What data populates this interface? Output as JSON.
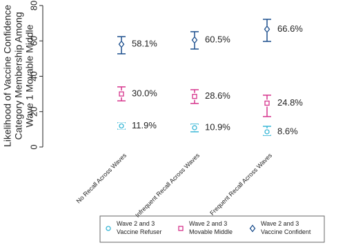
{
  "chart_data": {
    "type": "errorbar",
    "ylabel": [
      "Likelihood of Vaccine Confidence",
      "Category Membership Among",
      "Wave 1 Movable Middle"
    ],
    "categories": [
      "No Recall Across Waves",
      "Infrequent Recall Across Waves",
      "Frequent Recall Across Waves"
    ],
    "ylim": [
      0,
      80
    ],
    "yticks": [
      0,
      20,
      40,
      60,
      80
    ],
    "series": [
      {
        "name": "Wave 2 and 3 Vaccine Refuser",
        "color": "#35b6d6",
        "marker": "circle",
        "values": [
          11.9,
          10.9,
          8.6
        ],
        "value_labels": [
          "11.9%",
          "10.9%",
          "8.6%"
        ],
        "lower": [
          10.1,
          8.6,
          6.6
        ],
        "upper": [
          13.7,
          12.9,
          11.7
        ]
      },
      {
        "name": "Wave 2 and 3 Movable Middle",
        "color": "#d6338c",
        "marker": "square",
        "values": [
          30.0,
          28.6,
          24.8
        ],
        "value_labels": [
          "30.0%",
          "28.6%",
          "24.8%"
        ],
        "lower": [
          26.1,
          24.6,
          17.2
        ],
        "upper": [
          34.0,
          32.4,
          29.3
        ]
      },
      {
        "name": "Wave 2 and 3 Vaccine Confident",
        "color": "#1a4d8c",
        "marker": "diamond",
        "values": [
          58.1,
          60.5,
          66.6
        ],
        "value_labels": [
          "58.1%",
          "60.5%",
          "66.6%"
        ],
        "lower": [
          52.7,
          55.4,
          59.7
        ],
        "upper": [
          62.4,
          65.2,
          72.2
        ]
      }
    ]
  }
}
